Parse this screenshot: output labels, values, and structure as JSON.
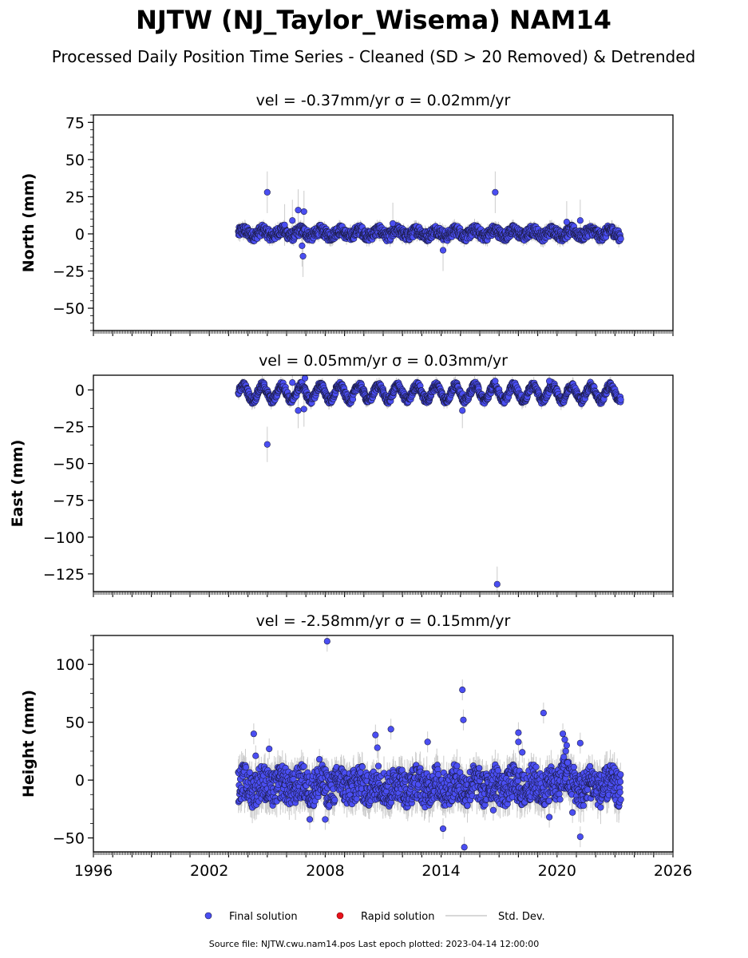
{
  "figure": {
    "title": "NJTW (NJ_Taylor_Wisema) NAM14",
    "subtitle": "Processed Daily Position Time Series - Cleaned (SD > 20 Removed) & Detrended",
    "source_text": "Source file: NJTW.cwu.nam14.pos  Last epoch plotted: 2023-04-14 12:00:00",
    "colors": {
      "final": "#4a4ef2",
      "rapid": "#e8121b",
      "stddev": "#cccccc",
      "edge": "#1a1a40"
    }
  },
  "legend": {
    "placement": "bottom-center",
    "entries": [
      {
        "label": "Final solution",
        "kind": "marker",
        "color": "#4a4ef2"
      },
      {
        "label": "Rapid solution",
        "kind": "marker",
        "color": "#e8121b"
      },
      {
        "label": "Std. Dev.",
        "kind": "line",
        "color": "#cccccc"
      }
    ]
  },
  "chart_data": [
    {
      "type": "scatter",
      "title": "vel = -0.37mm/yr   σ = 0.02mm/yr",
      "ylabel": "North (mm)",
      "xlim": [
        1996,
        2026
      ],
      "ylim": [
        -65,
        80
      ],
      "yticks": [
        75,
        50,
        25,
        0,
        -25,
        -50
      ],
      "ytick_labels": [
        "75",
        "50",
        "25",
        "0",
        "−25",
        "−50"
      ],
      "series": [
        {
          "name": "Final solution",
          "data_span": [
            2003.5,
            2023.3
          ],
          "band": [
            -4,
            5
          ],
          "seasonal_amplitude": 2.0,
          "outliers": [
            [
              2005.0,
              28
            ],
            [
              2006.6,
              16
            ],
            [
              2006.9,
              15
            ],
            [
              2006.3,
              9
            ],
            [
              2006.8,
              -8
            ],
            [
              2006.85,
              -15
            ],
            [
              2014.1,
              -11
            ],
            [
              2016.8,
              28
            ],
            [
              2020.5,
              8
            ],
            [
              2021.2,
              9
            ],
            [
              2005.9,
              6
            ],
            [
              2011.5,
              7
            ]
          ]
        }
      ]
    },
    {
      "type": "scatter",
      "title": "vel = 0.05mm/yr   σ = 0.03mm/yr",
      "ylabel": "East (mm)",
      "xlim": [
        1996,
        2026
      ],
      "ylim": [
        -137,
        10
      ],
      "yticks": [
        0,
        -25,
        -50,
        -75,
        -100,
        -125
      ],
      "ytick_labels": [
        "0",
        "−25",
        "−50",
        "−75",
        "−100",
        "−125"
      ],
      "series": [
        {
          "name": "Final solution",
          "data_span": [
            2003.5,
            2023.3
          ],
          "band": [
            -7,
            3
          ],
          "seasonal_amplitude": 5.0,
          "outliers": [
            [
              2005.0,
              -37
            ],
            [
              2006.6,
              -14
            ],
            [
              2006.9,
              -13
            ],
            [
              2006.95,
              8
            ],
            [
              2006.3,
              5
            ],
            [
              2015.1,
              -14
            ],
            [
              2016.8,
              6
            ],
            [
              2019.6,
              6
            ],
            [
              2016.9,
              -132
            ]
          ]
        }
      ]
    },
    {
      "type": "scatter",
      "title": "vel = -2.58mm/yr   σ = 0.15mm/yr",
      "ylabel": "Height (mm)",
      "xlim": [
        1996,
        2026
      ],
      "xticks": [
        1996,
        2002,
        2008,
        2014,
        2020,
        2026
      ],
      "xtick_labels": [
        "1996",
        "2002",
        "2008",
        "2014",
        "2020",
        "2026"
      ],
      "ylim": [
        -62,
        125
      ],
      "yticks": [
        100,
        50,
        0,
        -50
      ],
      "ytick_labels": [
        "100",
        "50",
        "0",
        "−50"
      ],
      "series": [
        {
          "name": "Final solution",
          "data_span": [
            2003.5,
            2023.3
          ],
          "band": [
            -22,
            12
          ],
          "seasonal_amplitude": 4.0,
          "outliers": [
            [
              2008.1,
              120
            ],
            [
              2015.1,
              78
            ],
            [
              2015.15,
              52
            ],
            [
              2019.3,
              58
            ],
            [
              2004.3,
              40
            ],
            [
              2010.6,
              39
            ],
            [
              2011.4,
              44
            ],
            [
              2010.7,
              28
            ],
            [
              2013.3,
              33
            ],
            [
              2004.4,
              21
            ],
            [
              2005.1,
              27
            ],
            [
              2007.7,
              18
            ],
            [
              2014.1,
              -42
            ],
            [
              2015.2,
              -58
            ],
            [
              2008.0,
              -34
            ],
            [
              2007.2,
              -34
            ],
            [
              2016.7,
              -26
            ],
            [
              2019.6,
              -32
            ],
            [
              2020.8,
              -28
            ],
            [
              2021.2,
              -49
            ],
            [
              2021.2,
              32
            ],
            [
              2018.0,
              41
            ],
            [
              2018.0,
              33
            ],
            [
              2018.2,
              24
            ],
            [
              2020.3,
              40
            ],
            [
              2020.4,
              35
            ],
            [
              2020.5,
              30
            ],
            [
              2020.45,
              25
            ],
            [
              2020.35,
              20
            ],
            [
              2020.55,
              15
            ]
          ]
        }
      ]
    }
  ]
}
